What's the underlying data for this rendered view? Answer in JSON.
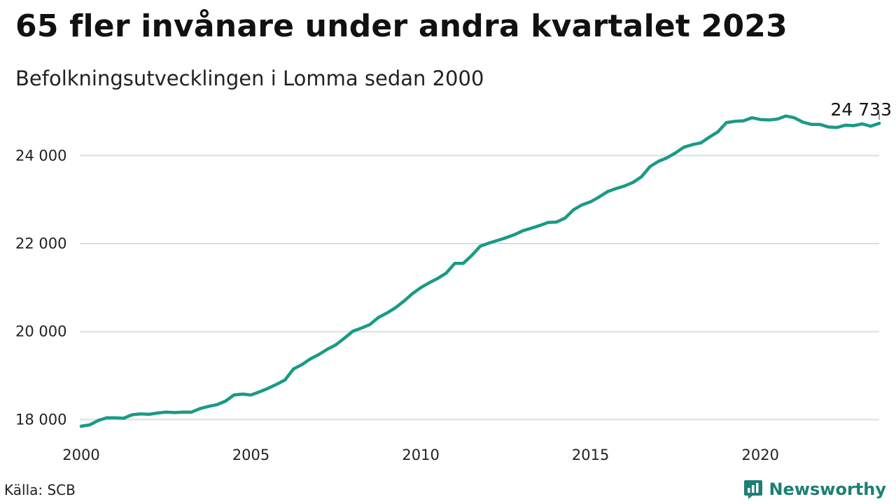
{
  "header": {
    "title": "65 fler invånare under andra kvartalet 2023",
    "subtitle": "Befolkningsutvecklingen i Lomma sedan 2000"
  },
  "footer": {
    "source": "Källa: SCB",
    "brand": "Newsworthy",
    "brand_icon": "newsworthy-logo-icon"
  },
  "colors": {
    "line": "#1a9a86",
    "grid": "#dddddd",
    "brand": "#1e7f73"
  },
  "chart_data": {
    "type": "line",
    "x_start": 2000,
    "x_step": 0.25,
    "xlim": [
      2000,
      2023.5
    ],
    "ylim": [
      17800,
      25150
    ],
    "grid": true,
    "x_ticks": [
      2000,
      2005,
      2010,
      2015,
      2020
    ],
    "y_ticks": [
      18000,
      20000,
      22000,
      24000
    ],
    "y_tick_labels": [
      "18 000",
      "20 000",
      "22 000",
      "24 000"
    ],
    "end_label": "24 733",
    "series": [
      {
        "values": [
          17850,
          17880,
          17980,
          18040,
          18040,
          18030,
          18110,
          18130,
          18120,
          18150,
          18170,
          18160,
          18170,
          18170,
          18250,
          18300,
          18340,
          18420,
          18560,
          18580,
          18560,
          18630,
          18710,
          18800,
          18900,
          19150,
          19250,
          19380,
          19480,
          19600,
          19700,
          19850,
          20010,
          20080,
          20160,
          20320,
          20420,
          20540,
          20690,
          20860,
          21000,
          21110,
          21210,
          21330,
          21550,
          21550,
          21730,
          21940,
          22010,
          22070,
          22130,
          22200,
          22290,
          22350,
          22410,
          22480,
          22490,
          22580,
          22770,
          22880,
          22950,
          23060,
          23180,
          23250,
          23310,
          23390,
          23520,
          23750,
          23870,
          23950,
          24060,
          24190,
          24250,
          24290,
          24420,
          24540,
          24750,
          24780,
          24790,
          24860,
          24820,
          24810,
          24830,
          24900,
          24860,
          24760,
          24710,
          24710,
          24650,
          24640,
          24690,
          24680,
          24720,
          24668,
          24733
        ]
      }
    ]
  }
}
